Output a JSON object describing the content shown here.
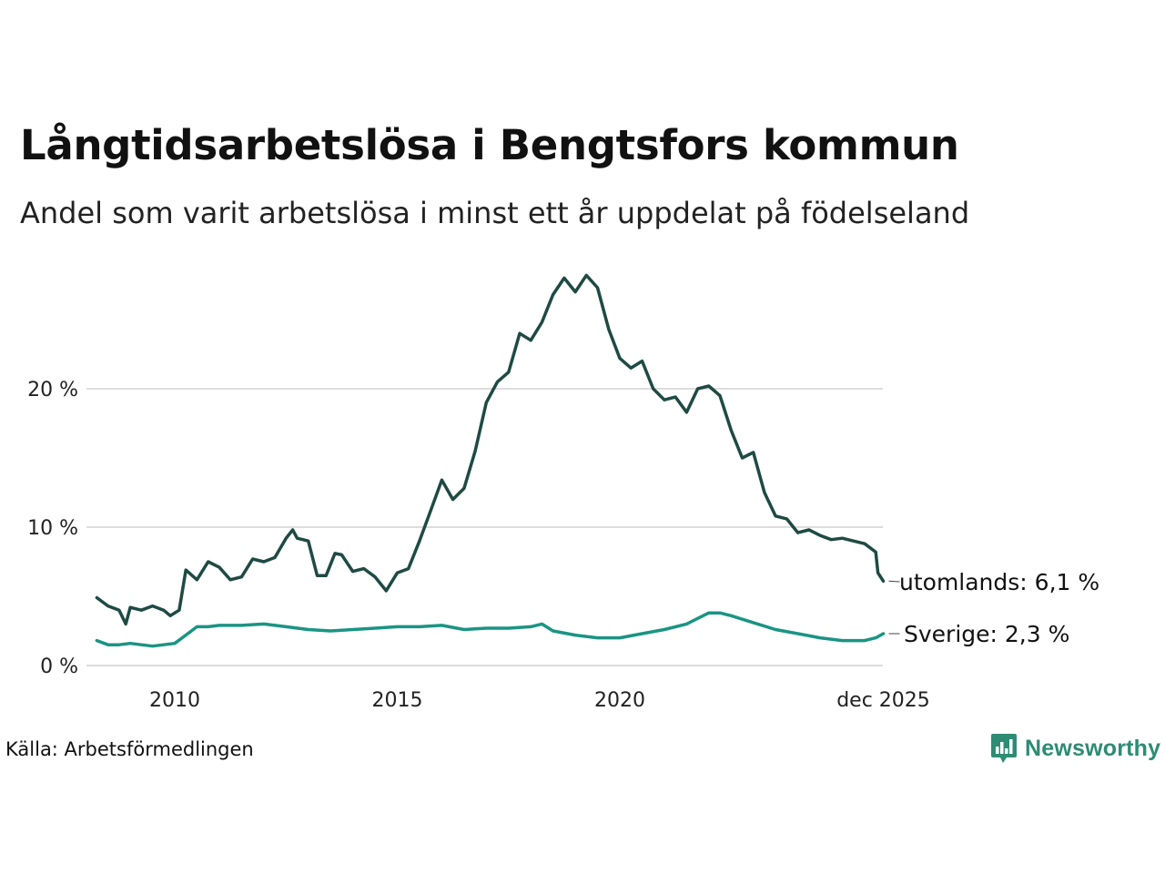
{
  "title": "Långtidsarbetslösa i Bengtsfors kommun",
  "subtitle": "Andel som varit arbetslösa i minst ett år uppdelat på födelseland",
  "source": "Källa: Arbetsförmedlingen",
  "brand": {
    "name": "Newsworthy",
    "logo_icon": "newsworthy-chart-logo-icon"
  },
  "colors": {
    "utomlands": "#1f4a44",
    "sverige": "#1a9483",
    "grid": "#dddddd",
    "brand": "#2e8b74"
  },
  "chart_data": {
    "type": "line",
    "title": "Långtidsarbetslösa i Bengtsfors kommun",
    "subtitle": "Andel som varit arbetslösa i minst ett år uppdelat på födelseland",
    "xlabel": "",
    "ylabel": "",
    "unit": "%",
    "x_start": 2008.25,
    "x_end": 2025.92,
    "xlim": [
      2008.25,
      2025.92
    ],
    "ylim": [
      0,
      28.5
    ],
    "y_ticks": [
      0,
      10,
      20
    ],
    "y_tick_labels": [
      "0 %",
      "10 %",
      "20 %"
    ],
    "x_ticks": [
      2010,
      2015,
      2020,
      2025.92
    ],
    "x_tick_labels": [
      "2010",
      "2015",
      "2020",
      "dec 2025"
    ],
    "grid": true,
    "series": [
      {
        "name": "utomlands",
        "end_label": "utomlands: 6,1 %",
        "end_value": 6.1,
        "points": [
          [
            2008.25,
            4.9
          ],
          [
            2008.5,
            4.3
          ],
          [
            2008.75,
            4.0
          ],
          [
            2008.9,
            3.0
          ],
          [
            2009.0,
            4.2
          ],
          [
            2009.25,
            4.0
          ],
          [
            2009.5,
            4.3
          ],
          [
            2009.75,
            4.0
          ],
          [
            2009.9,
            3.6
          ],
          [
            2010.1,
            4.0
          ],
          [
            2010.25,
            6.9
          ],
          [
            2010.5,
            6.2
          ],
          [
            2010.75,
            7.5
          ],
          [
            2011.0,
            7.1
          ],
          [
            2011.25,
            6.2
          ],
          [
            2011.5,
            6.4
          ],
          [
            2011.75,
            7.7
          ],
          [
            2012.0,
            7.5
          ],
          [
            2012.25,
            7.8
          ],
          [
            2012.5,
            9.2
          ],
          [
            2012.65,
            9.8
          ],
          [
            2012.75,
            9.2
          ],
          [
            2013.0,
            9.0
          ],
          [
            2013.2,
            6.5
          ],
          [
            2013.4,
            6.5
          ],
          [
            2013.6,
            8.1
          ],
          [
            2013.75,
            8.0
          ],
          [
            2014.0,
            6.8
          ],
          [
            2014.25,
            7.0
          ],
          [
            2014.5,
            6.4
          ],
          [
            2014.75,
            5.4
          ],
          [
            2015.0,
            6.7
          ],
          [
            2015.25,
            7.0
          ],
          [
            2015.5,
            9.0
          ],
          [
            2015.75,
            11.2
          ],
          [
            2016.0,
            13.4
          ],
          [
            2016.25,
            12.0
          ],
          [
            2016.5,
            12.8
          ],
          [
            2016.75,
            15.5
          ],
          [
            2017.0,
            19.0
          ],
          [
            2017.25,
            20.5
          ],
          [
            2017.5,
            21.2
          ],
          [
            2017.75,
            24.0
          ],
          [
            2018.0,
            23.5
          ],
          [
            2018.25,
            24.8
          ],
          [
            2018.5,
            26.8
          ],
          [
            2018.75,
            28.0
          ],
          [
            2019.0,
            27.0
          ],
          [
            2019.25,
            28.2
          ],
          [
            2019.5,
            27.3
          ],
          [
            2019.75,
            24.3
          ],
          [
            2020.0,
            22.2
          ],
          [
            2020.25,
            21.5
          ],
          [
            2020.5,
            22.0
          ],
          [
            2020.75,
            20.0
          ],
          [
            2021.0,
            19.2
          ],
          [
            2021.25,
            19.4
          ],
          [
            2021.5,
            18.3
          ],
          [
            2021.75,
            20.0
          ],
          [
            2022.0,
            20.2
          ],
          [
            2022.25,
            19.5
          ],
          [
            2022.5,
            17.0
          ],
          [
            2022.75,
            15.0
          ],
          [
            2023.0,
            15.4
          ],
          [
            2023.25,
            12.5
          ],
          [
            2023.5,
            10.8
          ],
          [
            2023.75,
            10.6
          ],
          [
            2024.0,
            9.6
          ],
          [
            2024.25,
            9.8
          ],
          [
            2024.5,
            9.4
          ],
          [
            2024.75,
            9.1
          ],
          [
            2025.0,
            9.2
          ],
          [
            2025.25,
            9.0
          ],
          [
            2025.5,
            8.8
          ],
          [
            2025.75,
            8.2
          ],
          [
            2025.8,
            6.7
          ],
          [
            2025.92,
            6.1
          ]
        ]
      },
      {
        "name": "Sverige",
        "end_label": "Sverige: 2,3 %",
        "end_value": 2.3,
        "points": [
          [
            2008.25,
            1.8
          ],
          [
            2008.5,
            1.5
          ],
          [
            2008.75,
            1.5
          ],
          [
            2009.0,
            1.6
          ],
          [
            2009.5,
            1.4
          ],
          [
            2010.0,
            1.6
          ],
          [
            2010.25,
            2.2
          ],
          [
            2010.5,
            2.8
          ],
          [
            2010.75,
            2.8
          ],
          [
            2011.0,
            2.9
          ],
          [
            2011.5,
            2.9
          ],
          [
            2012.0,
            3.0
          ],
          [
            2012.5,
            2.8
          ],
          [
            2013.0,
            2.6
          ],
          [
            2013.5,
            2.5
          ],
          [
            2014.0,
            2.6
          ],
          [
            2014.5,
            2.7
          ],
          [
            2015.0,
            2.8
          ],
          [
            2015.5,
            2.8
          ],
          [
            2016.0,
            2.9
          ],
          [
            2016.5,
            2.6
          ],
          [
            2017.0,
            2.7
          ],
          [
            2017.5,
            2.7
          ],
          [
            2018.0,
            2.8
          ],
          [
            2018.25,
            3.0
          ],
          [
            2018.5,
            2.5
          ],
          [
            2019.0,
            2.2
          ],
          [
            2019.5,
            2.0
          ],
          [
            2020.0,
            2.0
          ],
          [
            2020.5,
            2.3
          ],
          [
            2021.0,
            2.6
          ],
          [
            2021.5,
            3.0
          ],
          [
            2022.0,
            3.8
          ],
          [
            2022.25,
            3.8
          ],
          [
            2022.5,
            3.6
          ],
          [
            2023.0,
            3.1
          ],
          [
            2023.5,
            2.6
          ],
          [
            2024.0,
            2.3
          ],
          [
            2024.5,
            2.0
          ],
          [
            2025.0,
            1.8
          ],
          [
            2025.5,
            1.8
          ],
          [
            2025.75,
            2.0
          ],
          [
            2025.92,
            2.3
          ]
        ]
      }
    ]
  }
}
